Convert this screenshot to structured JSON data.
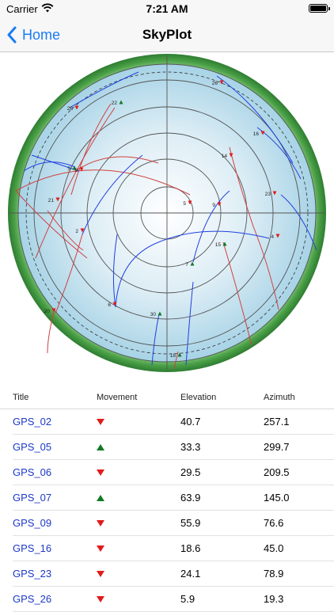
{
  "status": {
    "carrier": "Carrier",
    "time": "7:21 AM"
  },
  "nav": {
    "back_label": "Home",
    "title": "SkyPlot"
  },
  "colors": {
    "accent": "#1a7cf5",
    "link": "#1c39c7",
    "down": "#e11b1b",
    "up": "#127a24",
    "ascending_track": "#2040e0",
    "descending_track": "#d04040"
  },
  "skyplot": {
    "satellites": [
      {
        "label": "26",
        "direction": "down"
      },
      {
        "label": "28",
        "direction": "down"
      },
      {
        "label": "22",
        "direction": "up"
      },
      {
        "label": "16",
        "direction": "down"
      },
      {
        "label": "14",
        "direction": "down"
      },
      {
        "label": "5",
        "direction": "up"
      },
      {
        "label": "9",
        "direction": "down"
      },
      {
        "label": "21",
        "direction": "down"
      },
      {
        "label": "23",
        "direction": "down"
      },
      {
        "label": "5",
        "direction": "down"
      },
      {
        "label": "9",
        "direction": "down"
      },
      {
        "label": "2",
        "direction": "down"
      },
      {
        "label": "4",
        "direction": "down"
      },
      {
        "label": "15",
        "direction": "up"
      },
      {
        "label": "7",
        "direction": "up"
      },
      {
        "label": "6",
        "direction": "down"
      },
      {
        "label": "20",
        "direction": "down"
      },
      {
        "label": "30",
        "direction": "up"
      },
      {
        "label": "18",
        "direction": "up"
      }
    ]
  },
  "table": {
    "headers": {
      "title": "Title",
      "movement": "Movement",
      "elevation": "Elevation",
      "azimuth": "Azimuth"
    },
    "rows": [
      {
        "title": "GPS_02",
        "movement": "down",
        "elevation": "40.7",
        "azimuth": "257.1"
      },
      {
        "title": "GPS_05",
        "movement": "up",
        "elevation": "33.3",
        "azimuth": "299.7"
      },
      {
        "title": "GPS_06",
        "movement": "down",
        "elevation": "29.5",
        "azimuth": "209.5"
      },
      {
        "title": "GPS_07",
        "movement": "up",
        "elevation": "63.9",
        "azimuth": "145.0"
      },
      {
        "title": "GPS_09",
        "movement": "down",
        "elevation": "55.9",
        "azimuth": "76.6"
      },
      {
        "title": "GPS_16",
        "movement": "down",
        "elevation": "18.6",
        "azimuth": "45.0"
      },
      {
        "title": "GPS_23",
        "movement": "down",
        "elevation": "24.1",
        "azimuth": "78.9"
      },
      {
        "title": "GPS_26",
        "movement": "down",
        "elevation": "5.9",
        "azimuth": "19.3"
      }
    ]
  }
}
